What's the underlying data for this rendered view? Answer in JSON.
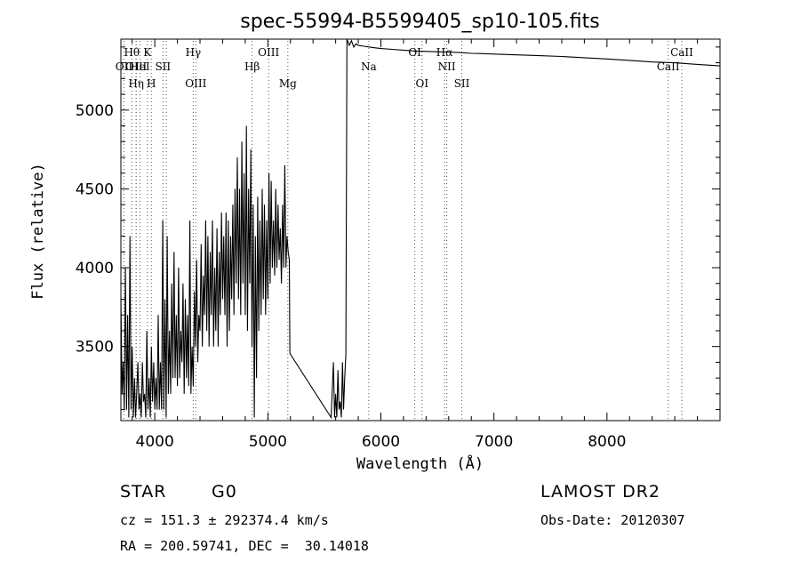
{
  "chart_data": {
    "type": "line",
    "title": "spec-55994-B5599405_sp10-105.fits",
    "xlabel": "Wavelength (Å)",
    "ylabel": "Flux (relative)",
    "xlim": [
      3700,
      9000
    ],
    "ylim": [
      3030,
      5450
    ],
    "xticks": [
      4000,
      5000,
      6000,
      7000,
      8000
    ],
    "yticks": [
      3500,
      4000,
      4500,
      5000
    ],
    "grid": false,
    "series": [
      {
        "x": [
          3700,
          3710,
          3720,
          3730,
          3740,
          3750,
          3760,
          3770,
          3780,
          3790,
          3800,
          3810,
          3820,
          3830,
          3840,
          3850,
          3860,
          3870,
          3880,
          3890,
          3900,
          3910,
          3920,
          3930,
          3940,
          3950,
          3960,
          3970,
          3980,
          3990,
          4000,
          4010,
          4020,
          4030,
          4040,
          4050,
          4060,
          4070,
          4080,
          4090,
          4100,
          4110,
          4120,
          4130,
          4140,
          4150,
          4160,
          4170,
          4180,
          4190,
          4200,
          4210,
          4220,
          4230,
          4240,
          4250,
          4260,
          4270,
          4280,
          4290,
          4300,
          4310,
          4320,
          4330,
          4340,
          4350,
          4360,
          4370,
          4380,
          4390,
          4400,
          4410,
          4420,
          4430,
          4440,
          4450,
          4460,
          4470,
          4480,
          4490,
          4500,
          4510,
          4520,
          4530,
          4540,
          4550,
          4560,
          4570,
          4580,
          4590,
          4600,
          4610,
          4620,
          4630,
          4640,
          4650,
          4660,
          4670,
          4680,
          4690,
          4700,
          4710,
          4720,
          4730,
          4740,
          4750,
          4760,
          4770,
          4780,
          4790,
          4800,
          4810,
          4820,
          4830,
          4840,
          4850,
          4860,
          4870,
          4880,
          4890,
          4900,
          4910,
          4920,
          4930,
          4940,
          4950,
          4960,
          4970,
          4980,
          4990,
          5000,
          5010,
          5020,
          5030,
          5040,
          5050,
          5060,
          5070,
          5080,
          5090,
          5100,
          5110,
          5120,
          5130,
          5140,
          5150,
          5160,
          5170,
          5180,
          5190,
          5195,
          5200,
          5560,
          5580,
          5590,
          5600,
          5610,
          5620,
          5630,
          5640,
          5650,
          5660,
          5670,
          5680,
          5690,
          5700,
          5720,
          5740,
          5760,
          5780,
          5800,
          5850,
          5900,
          5950,
          6000,
          6100,
          6200,
          6300,
          6400,
          6500,
          6600,
          6700,
          6800,
          6900,
          7000,
          7200,
          7400,
          7600,
          7800,
          8000,
          8200,
          8400,
          8600,
          8800,
          9000
        ],
        "y": [
          3800,
          3200,
          3400,
          3100,
          4000,
          3100,
          3700,
          3050,
          4200,
          3100,
          3500,
          3050,
          3300,
          3050,
          3200,
          3400,
          3100,
          3200,
          3050,
          3400,
          3150,
          3200,
          3050,
          3600,
          3100,
          3300,
          3050,
          3500,
          3150,
          3400,
          3100,
          3300,
          3100,
          3700,
          3100,
          3400,
          3100,
          4300,
          3100,
          3800,
          3050,
          4200,
          3200,
          3600,
          3200,
          3900,
          3300,
          4100,
          3300,
          3700,
          3250,
          4000,
          3300,
          3600,
          3400,
          3900,
          3200,
          3800,
          3300,
          3700,
          3250,
          4300,
          3200,
          3500,
          3250,
          3850,
          3500,
          4050,
          3400,
          3700,
          3600,
          4150,
          3500,
          3950,
          3700,
          4300,
          3600,
          4200,
          3500,
          4100,
          3700,
          4300,
          3500,
          4000,
          3600,
          4250,
          3500,
          4100,
          3700,
          4350,
          3800,
          4200,
          3700,
          4350,
          3500,
          4300,
          3600,
          4200,
          3800,
          4400,
          3700,
          4500,
          3900,
          4700,
          3800,
          4500,
          3700,
          4800,
          3900,
          4600,
          3700,
          4900,
          3600,
          4500,
          3900,
          4750,
          3500,
          4400,
          3050,
          4200,
          3300,
          4450,
          3600,
          4300,
          3700,
          4500,
          3800,
          4400,
          3700,
          4300,
          3800,
          4600,
          3900,
          4550,
          4000,
          4300,
          3950,
          4500,
          4000,
          4400,
          4050,
          4250,
          3900,
          4400,
          4000,
          4650,
          4000,
          4200,
          4100,
          4050,
          3460,
          3450,
          3050,
          3400,
          3050,
          3200,
          3050,
          3350,
          3100,
          3150,
          3050,
          3400,
          3100,
          3300,
          3450,
          5450,
          5410,
          5440,
          5400,
          5420,
          5410,
          5405,
          5400,
          5395,
          5390,
          5385,
          5380,
          5375,
          5372,
          5370,
          5368,
          5365,
          5360,
          5358,
          5355,
          5350,
          5345,
          5340,
          5332,
          5324,
          5315,
          5305,
          5300,
          5290,
          5280
        ]
      }
    ]
  },
  "lines": [
    {
      "wave": 3727,
      "label": "OII",
      "row": 2
    },
    {
      "wave": 3797,
      "label": "Hθ",
      "row": 1
    },
    {
      "wave": 3835,
      "label": "OIII",
      "row": 2
    },
    {
      "wave": 3835,
      "label": "Hη",
      "row": 3
    },
    {
      "wave": 3869,
      "label": "HeI",
      "row": 2
    },
    {
      "wave": 3934,
      "label": "K",
      "row": 1
    },
    {
      "wave": 3969,
      "label": "H",
      "row": 3
    },
    {
      "wave": 4072,
      "label": "SII",
      "row": 2
    },
    {
      "wave": 4102,
      "label": "",
      "row": 0
    },
    {
      "wave": 4340,
      "label": "Hγ",
      "row": 1
    },
    {
      "wave": 4363,
      "label": "OIII",
      "row": 3
    },
    {
      "wave": 4861,
      "label": "Hβ",
      "row": 2
    },
    {
      "wave": 5007,
      "label": "OIII",
      "row": 1
    },
    {
      "wave": 5177,
      "label": "Mg",
      "row": 3
    },
    {
      "wave": 5893,
      "label": "Na",
      "row": 2
    },
    {
      "wave": 6300,
      "label": "OI",
      "row": 1
    },
    {
      "wave": 6364,
      "label": "OI",
      "row": 3
    },
    {
      "wave": 6563,
      "label": "Hα",
      "row": 1
    },
    {
      "wave": 6583,
      "label": "NII",
      "row": 2
    },
    {
      "wave": 6716,
      "label": "SII",
      "row": 3
    },
    {
      "wave": 8542,
      "label": "CaII",
      "row": 2
    },
    {
      "wave": 8662,
      "label": "CaII",
      "row": 1
    }
  ],
  "info": {
    "class": "STAR",
    "subclass": "G0",
    "survey": "LAMOST DR2",
    "cz": "cz = 151.3 ± 292374.4 km/s",
    "obsdate": "Obs-Date: 20120307",
    "radec": "RA = 200.59741, DEC =  30.14018"
  }
}
